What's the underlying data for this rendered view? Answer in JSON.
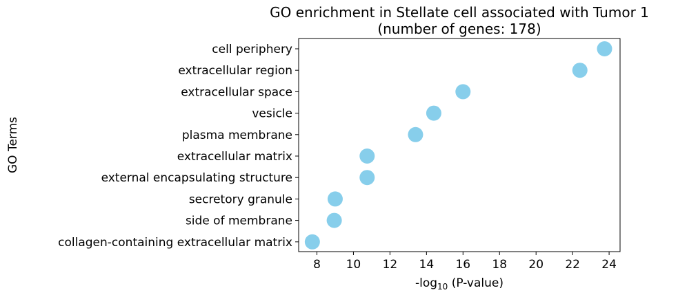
{
  "chart_data": {
    "type": "scatter",
    "title": "GO enrichment in Stellate cell associated with Tumor 1",
    "subtitle": "(number of genes: 178)",
    "xlabel": {
      "prefix": "-log",
      "subscript": "10",
      "suffix": " (P-value)"
    },
    "ylabel": "GO Terms",
    "xlim": [
      7.0,
      24.6
    ],
    "xticks": [
      8,
      10,
      12,
      14,
      16,
      18,
      20,
      22,
      24
    ],
    "grid": false,
    "legend": "none",
    "marker_color": "#87CEEB",
    "categories": [
      "cell periphery",
      "extracellular region",
      "extracellular space",
      "vesicle",
      "plasma membrane",
      "extracellular matrix",
      "external encapsulating structure",
      "secretory granule",
      "side of membrane",
      "collagen-containing extracellular matrix"
    ],
    "values": [
      23.75,
      22.4,
      16.0,
      14.4,
      13.4,
      10.75,
      10.75,
      9.0,
      8.95,
      7.75
    ]
  }
}
